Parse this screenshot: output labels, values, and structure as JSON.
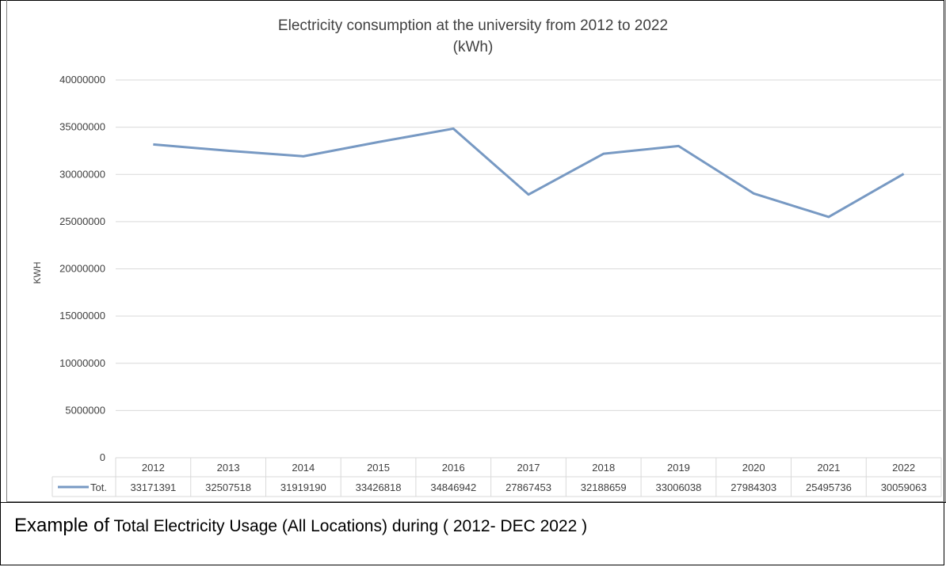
{
  "caption": {
    "lead": "Example of",
    "text": " Total Electricity Usage (All Locations) during ( 2012- DEC 2022 )"
  },
  "colors": {
    "series": "#7799c3",
    "grid": "#d9d9d9",
    "axis_text": "#404040"
  },
  "chart_data": {
    "type": "line",
    "title": [
      "Electricity consumption at the university from 2012 to 2022",
      "(kWh)"
    ],
    "xlabel": "",
    "ylabel": "KWH",
    "ylim": [
      0,
      40000000
    ],
    "yticks": [
      0,
      5000000,
      10000000,
      15000000,
      20000000,
      25000000,
      30000000,
      35000000,
      40000000
    ],
    "grid": true,
    "legend": "data-table",
    "categories": [
      "2012",
      "2013",
      "2014",
      "2015",
      "2016",
      "2017",
      "2018",
      "2019",
      "2020",
      "2021",
      "2022"
    ],
    "series": [
      {
        "name": "Tot.",
        "values": [
          33171391,
          32507518,
          31919190,
          33426818,
          34846942,
          27867453,
          32188659,
          33006038,
          27984303,
          25495736,
          30059063
        ]
      }
    ]
  }
}
